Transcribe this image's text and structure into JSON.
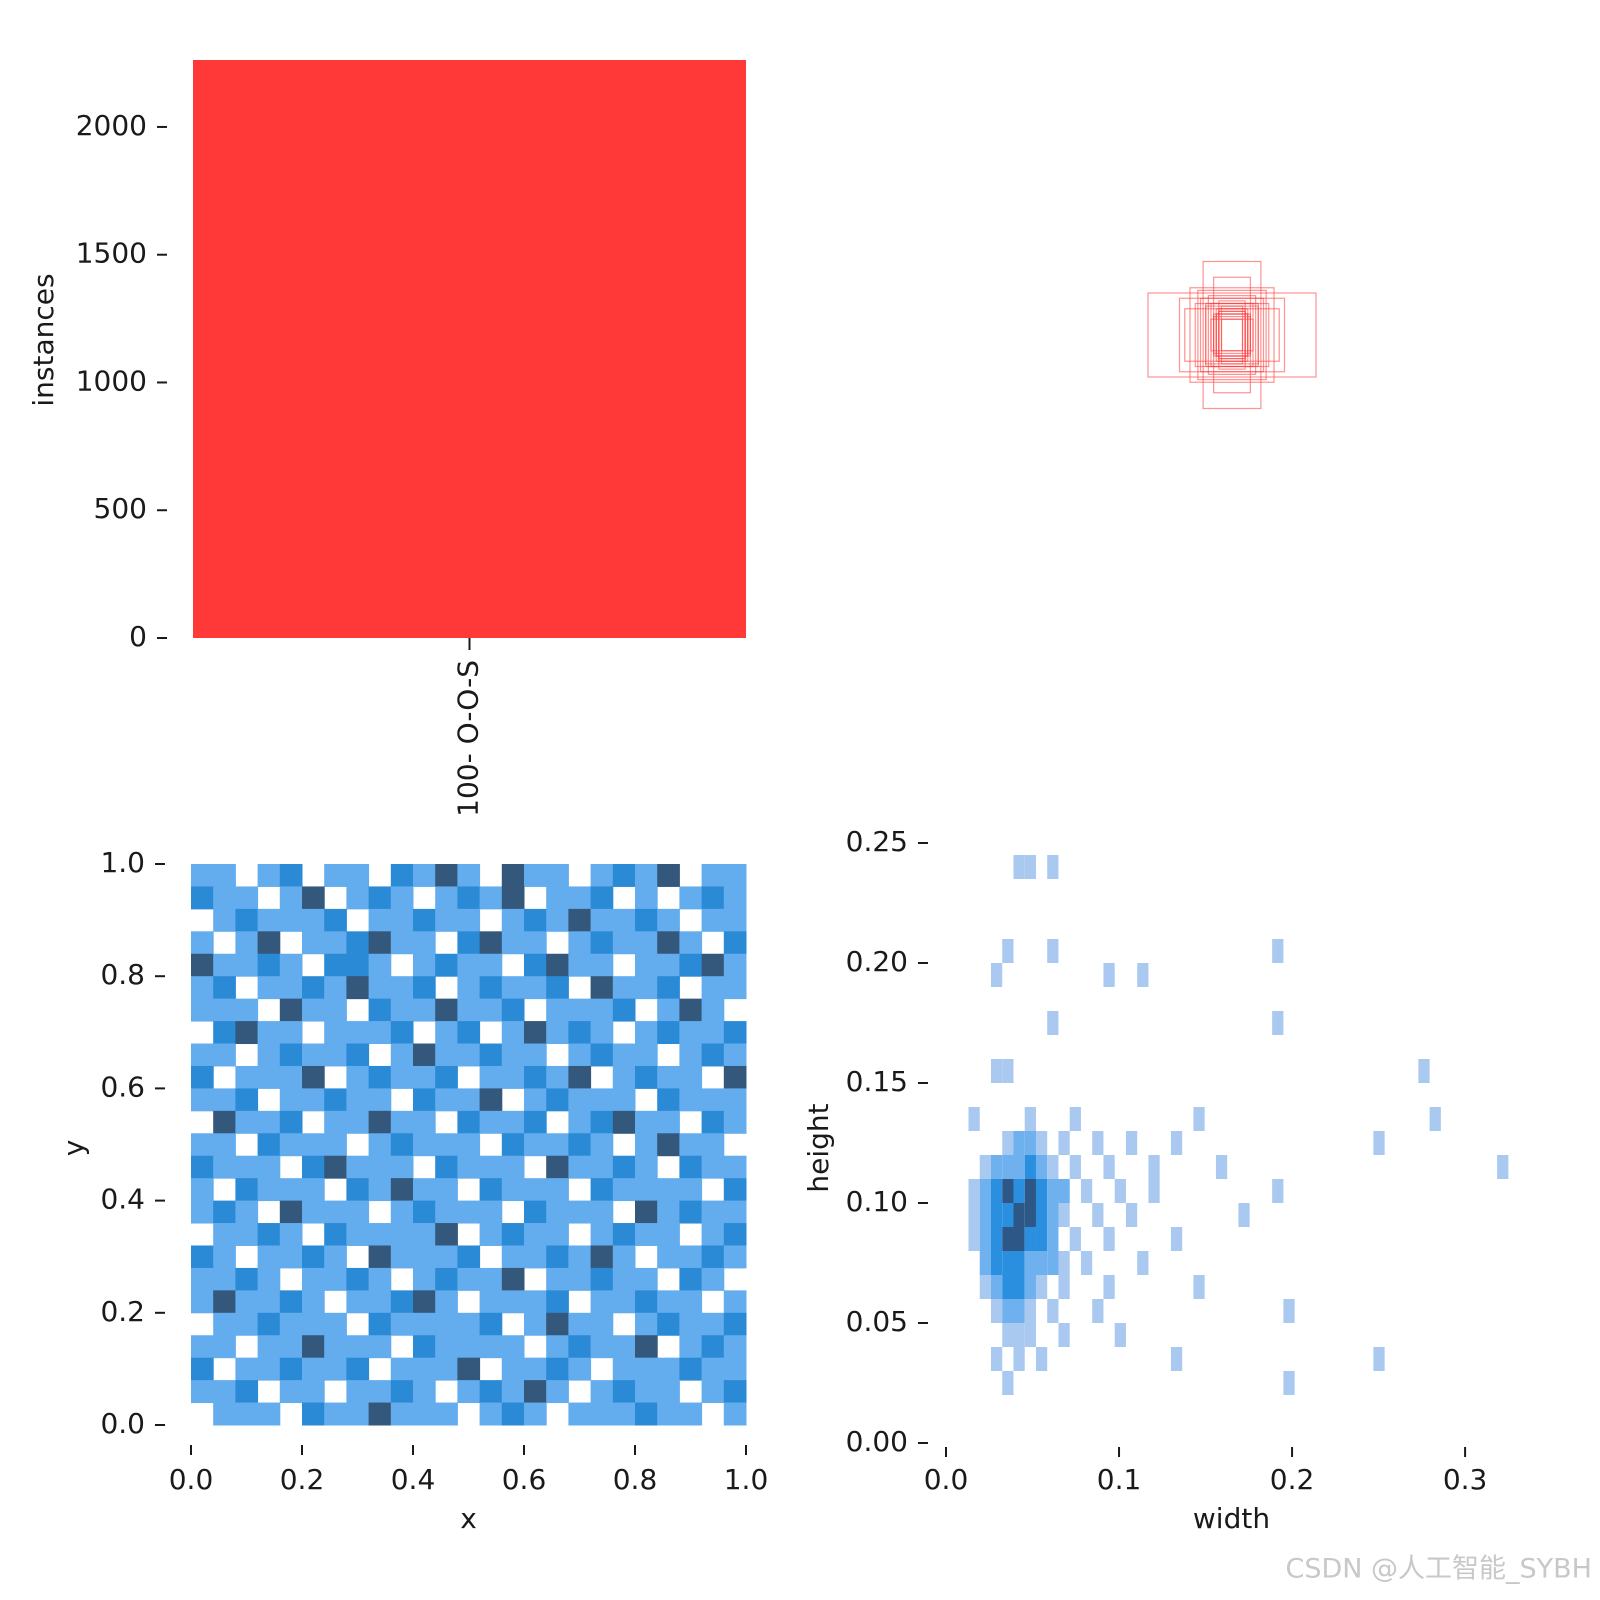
{
  "chart_data": [
    {
      "type": "bar",
      "ylabel": "instances",
      "categories": [
        "100- O-O-S"
      ],
      "values": [
        2262
      ],
      "color": "#ff3838",
      "ylim": [
        0,
        2262
      ],
      "yticks": [
        0,
        500,
        1000,
        1500,
        2000
      ]
    },
    {
      "type": "boxes",
      "color": "#ff3838",
      "widths": [
        0.06,
        0.05,
        0.07,
        0.08,
        0.04,
        0.1,
        0.12,
        0.05,
        0.06,
        0.09,
        0.14,
        0.32,
        0.18,
        0.07,
        0.05,
        0.2,
        0.16,
        0.11,
        0.06,
        0.08,
        0.05,
        0.13,
        0.04,
        0.07,
        0.1
      ],
      "heights": [
        0.08,
        0.1,
        0.07,
        0.12,
        0.06,
        0.11,
        0.14,
        0.09,
        0.08,
        0.15,
        0.12,
        0.16,
        0.1,
        0.22,
        0.09,
        0.14,
        0.18,
        0.28,
        0.1,
        0.06,
        0.13,
        0.17,
        0.11,
        0.08,
        0.12
      ]
    },
    {
      "type": "heatmap",
      "xlabel": "x",
      "ylabel": "y",
      "xlim": [
        0,
        1
      ],
      "ylim": [
        0,
        1
      ],
      "xticks": [
        {
          "value": 0,
          "label": "0.0"
        },
        0.2,
        0.4,
        0.6,
        0.8,
        {
          "value": 1,
          "label": "1.0"
        }
      ],
      "yticks": [
        {
          "value": 0,
          "label": "0.0"
        },
        0.2,
        0.4,
        0.6,
        0.8,
        {
          "value": 1,
          "label": "1.0"
        }
      ],
      "colors": [
        "#63adee",
        "#2b8ad6",
        "#34577c"
      ],
      "values": [
        [
          1,
          1,
          0,
          1,
          2,
          0,
          1,
          1,
          0,
          2,
          1,
          3,
          1,
          0,
          3,
          1,
          1,
          0,
          1,
          2,
          1,
          3,
          0,
          1,
          1
        ],
        [
          2,
          1,
          1,
          0,
          1,
          3,
          0,
          1,
          2,
          1,
          0,
          1,
          2,
          1,
          3,
          0,
          1,
          1,
          2,
          0,
          1,
          0,
          1,
          2,
          1
        ],
        [
          0,
          1,
          2,
          1,
          1,
          1,
          2,
          0,
          1,
          1,
          2,
          1,
          1,
          0,
          1,
          2,
          1,
          3,
          1,
          1,
          2,
          1,
          0,
          1,
          1
        ],
        [
          1,
          0,
          1,
          3,
          0,
          1,
          1,
          2,
          3,
          1,
          1,
          0,
          2,
          3,
          1,
          1,
          0,
          1,
          2,
          1,
          1,
          3,
          1,
          0,
          2
        ],
        [
          3,
          1,
          1,
          2,
          1,
          0,
          2,
          2,
          1,
          0,
          1,
          2,
          1,
          1,
          0,
          2,
          3,
          1,
          1,
          0,
          1,
          1,
          2,
          3,
          1
        ],
        [
          1,
          2,
          0,
          1,
          1,
          2,
          1,
          3,
          1,
          1,
          2,
          0,
          1,
          2,
          1,
          1,
          2,
          0,
          3,
          1,
          1,
          2,
          0,
          1,
          1
        ],
        [
          1,
          1,
          1,
          0,
          3,
          1,
          1,
          0,
          2,
          1,
          1,
          3,
          1,
          1,
          2,
          0,
          1,
          1,
          1,
          2,
          0,
          1,
          3,
          1,
          0
        ],
        [
          0,
          2,
          3,
          1,
          1,
          0,
          1,
          1,
          1,
          2,
          0,
          1,
          2,
          0,
          1,
          3,
          1,
          2,
          1,
          0,
          1,
          2,
          1,
          1,
          2
        ],
        [
          1,
          1,
          0,
          1,
          2,
          1,
          1,
          2,
          0,
          1,
          3,
          1,
          1,
          2,
          1,
          1,
          0,
          1,
          2,
          1,
          1,
          0,
          1,
          2,
          1
        ],
        [
          2,
          0,
          1,
          1,
          1,
          3,
          0,
          1,
          2,
          1,
          1,
          2,
          0,
          1,
          1,
          2,
          1,
          3,
          0,
          1,
          2,
          1,
          1,
          0,
          3
        ],
        [
          1,
          1,
          2,
          0,
          1,
          1,
          2,
          1,
          1,
          0,
          2,
          1,
          1,
          3,
          0,
          1,
          2,
          1,
          1,
          1,
          0,
          2,
          1,
          1,
          1
        ],
        [
          0,
          3,
          1,
          1,
          2,
          0,
          1,
          1,
          3,
          1,
          1,
          0,
          2,
          1,
          1,
          2,
          0,
          1,
          2,
          3,
          1,
          1,
          0,
          2,
          1
        ],
        [
          1,
          1,
          0,
          2,
          1,
          1,
          1,
          0,
          1,
          2,
          1,
          1,
          1,
          0,
          2,
          1,
          1,
          2,
          1,
          0,
          1,
          3,
          1,
          1,
          0
        ],
        [
          2,
          1,
          1,
          1,
          0,
          2,
          3,
          1,
          1,
          1,
          0,
          2,
          1,
          1,
          1,
          0,
          3,
          1,
          1,
          2,
          1,
          0,
          2,
          1,
          1
        ],
        [
          1,
          0,
          2,
          1,
          1,
          1,
          0,
          2,
          1,
          3,
          1,
          1,
          0,
          2,
          1,
          1,
          1,
          0,
          2,
          1,
          1,
          1,
          1,
          0,
          2
        ],
        [
          1,
          2,
          1,
          0,
          3,
          1,
          1,
          1,
          0,
          1,
          2,
          1,
          1,
          1,
          0,
          2,
          1,
          1,
          1,
          0,
          3,
          1,
          2,
          1,
          1
        ],
        [
          0,
          1,
          1,
          2,
          1,
          0,
          2,
          1,
          1,
          1,
          1,
          3,
          0,
          1,
          2,
          1,
          1,
          0,
          1,
          2,
          1,
          1,
          0,
          1,
          2
        ],
        [
          2,
          1,
          0,
          1,
          1,
          2,
          1,
          0,
          3,
          1,
          1,
          1,
          2,
          0,
          1,
          1,
          2,
          1,
          3,
          1,
          0,
          1,
          1,
          2,
          1
        ],
        [
          1,
          1,
          2,
          1,
          0,
          1,
          1,
          2,
          1,
          0,
          1,
          2,
          1,
          1,
          3,
          0,
          1,
          1,
          2,
          1,
          1,
          0,
          2,
          1,
          0
        ],
        [
          1,
          3,
          1,
          1,
          2,
          1,
          0,
          1,
          1,
          2,
          3,
          1,
          0,
          1,
          1,
          1,
          2,
          0,
          1,
          1,
          2,
          1,
          1,
          0,
          1
        ],
        [
          0,
          1,
          1,
          2,
          1,
          1,
          1,
          0,
          2,
          1,
          1,
          1,
          1,
          2,
          0,
          1,
          3,
          1,
          1,
          0,
          1,
          2,
          1,
          1,
          2
        ],
        [
          1,
          1,
          0,
          1,
          1,
          3,
          1,
          1,
          1,
          0,
          2,
          1,
          1,
          1,
          1,
          0,
          1,
          2,
          1,
          1,
          3,
          0,
          1,
          2,
          1
        ],
        [
          2,
          0,
          1,
          1,
          2,
          1,
          1,
          2,
          0,
          1,
          1,
          1,
          3,
          0,
          1,
          1,
          2,
          1,
          0,
          1,
          1,
          1,
          2,
          1,
          1
        ],
        [
          1,
          1,
          2,
          0,
          1,
          1,
          0,
          1,
          1,
          2,
          1,
          0,
          1,
          2,
          1,
          3,
          1,
          0,
          1,
          2,
          1,
          1,
          0,
          1,
          2
        ],
        [
          0,
          1,
          1,
          1,
          0,
          2,
          1,
          1,
          3,
          1,
          1,
          1,
          0,
          1,
          2,
          1,
          0,
          1,
          1,
          1,
          2,
          1,
          1,
          0,
          1
        ]
      ]
    },
    {
      "type": "sparse_heatmap",
      "xlabel": "width",
      "ylabel": "height",
      "xlim": [
        0,
        0.33
      ],
      "ylim": [
        0,
        0.25
      ],
      "xticks": [
        {
          "value": 0,
          "label": "0.0"
        },
        0.1,
        0.2,
        0.3
      ],
      "yticks": [
        {
          "value": 0,
          "label": "0.00"
        },
        0.05,
        {
          "value": 0.1,
          "label": "0.10"
        },
        0.15,
        {
          "value": 0.2,
          "label": "0.20"
        },
        0.25
      ],
      "bin_width": 0.0065,
      "bin_height": 0.01,
      "colors": [
        "#a9c9f1",
        "#6fb0ee",
        "#2b8fe0",
        "#2d5786"
      ],
      "rows": [
        {
          "y": 0.235,
          "x": [
            0.039,
            0.0455,
            0.0585
          ],
          "values": [
            1,
            1,
            1
          ]
        },
        {
          "y": 0.2,
          "x": [
            0.0325,
            0.0585,
            0.1885
          ],
          "values": [
            1,
            1,
            1
          ]
        },
        {
          "y": 0.19,
          "x": [
            0.026,
            0.091,
            0.1105
          ],
          "values": [
            1,
            1,
            1
          ]
        },
        {
          "y": 0.17,
          "x": [
            0.0585,
            0.1885
          ],
          "values": [
            1,
            1
          ]
        },
        {
          "y": 0.15,
          "x": [
            0.0325,
            0.026,
            0.273
          ],
          "values": [
            1,
            1,
            1
          ]
        },
        {
          "y": 0.13,
          "x": [
            0.013,
            0.0455,
            0.0715,
            0.143,
            0.2795
          ],
          "values": [
            1,
            1,
            1,
            1,
            1
          ]
        },
        {
          "y": 0.12,
          "x": [
            0.0325,
            0.039,
            0.0455,
            0.052,
            0.065,
            0.0845,
            0.104,
            0.13,
            0.247
          ],
          "values": [
            1,
            2,
            2,
            1,
            1,
            1,
            1,
            1,
            1
          ]
        },
        {
          "y": 0.11,
          "x": [
            0.0195,
            0.026,
            0.0325,
            0.039,
            0.0455,
            0.052,
            0.0585,
            0.0715,
            0.091,
            0.117,
            0.156,
            0.3185
          ],
          "values": [
            1,
            2,
            2,
            2,
            3,
            2,
            1,
            1,
            1,
            1,
            1,
            1
          ]
        },
        {
          "y": 0.1,
          "x": [
            0.013,
            0.0195,
            0.026,
            0.0325,
            0.039,
            0.0455,
            0.052,
            0.0585,
            0.065,
            0.078,
            0.0975,
            0.117,
            0.1885
          ],
          "values": [
            1,
            2,
            3,
            4,
            3,
            4,
            3,
            2,
            2,
            1,
            1,
            1,
            1
          ]
        },
        {
          "y": 0.09,
          "x": [
            0.013,
            0.0195,
            0.026,
            0.0325,
            0.039,
            0.0455,
            0.052,
            0.0585,
            0.065,
            0.0845,
            0.104,
            0.169
          ],
          "values": [
            1,
            2,
            3,
            3,
            4,
            4,
            3,
            2,
            1,
            1,
            1,
            1
          ]
        },
        {
          "y": 0.08,
          "x": [
            0.013,
            0.0195,
            0.026,
            0.0325,
            0.039,
            0.0455,
            0.052,
            0.0585,
            0.0715,
            0.091,
            0.13
          ],
          "values": [
            1,
            2,
            3,
            4,
            4,
            3,
            3,
            2,
            1,
            1,
            1
          ]
        },
        {
          "y": 0.07,
          "x": [
            0.0195,
            0.026,
            0.0325,
            0.039,
            0.0455,
            0.052,
            0.0585,
            0.065,
            0.078,
            0.1105
          ],
          "values": [
            2,
            3,
            3,
            3,
            2,
            2,
            2,
            1,
            1,
            1
          ]
        },
        {
          "y": 0.06,
          "x": [
            0.0195,
            0.026,
            0.0325,
            0.039,
            0.0455,
            0.052,
            0.065,
            0.091,
            0.143
          ],
          "values": [
            1,
            2,
            3,
            3,
            2,
            1,
            1,
            1,
            1
          ]
        },
        {
          "y": 0.05,
          "x": [
            0.026,
            0.0325,
            0.039,
            0.0455,
            0.0585,
            0.0845,
            0.195
          ],
          "values": [
            1,
            2,
            2,
            1,
            1,
            1,
            1
          ]
        },
        {
          "y": 0.04,
          "x": [
            0.0325,
            0.039,
            0.0455,
            0.065,
            0.0975
          ],
          "values": [
            1,
            1,
            1,
            1,
            1
          ]
        },
        {
          "y": 0.03,
          "x": [
            0.026,
            0.039,
            0.052,
            0.13,
            0.247
          ],
          "values": [
            1,
            1,
            1,
            1,
            1
          ]
        },
        {
          "y": 0.02,
          "x": [
            0.0325,
            0.195
          ],
          "values": [
            1,
            1
          ]
        }
      ]
    }
  ],
  "watermark": "CSDN @人工智能_SYBH"
}
